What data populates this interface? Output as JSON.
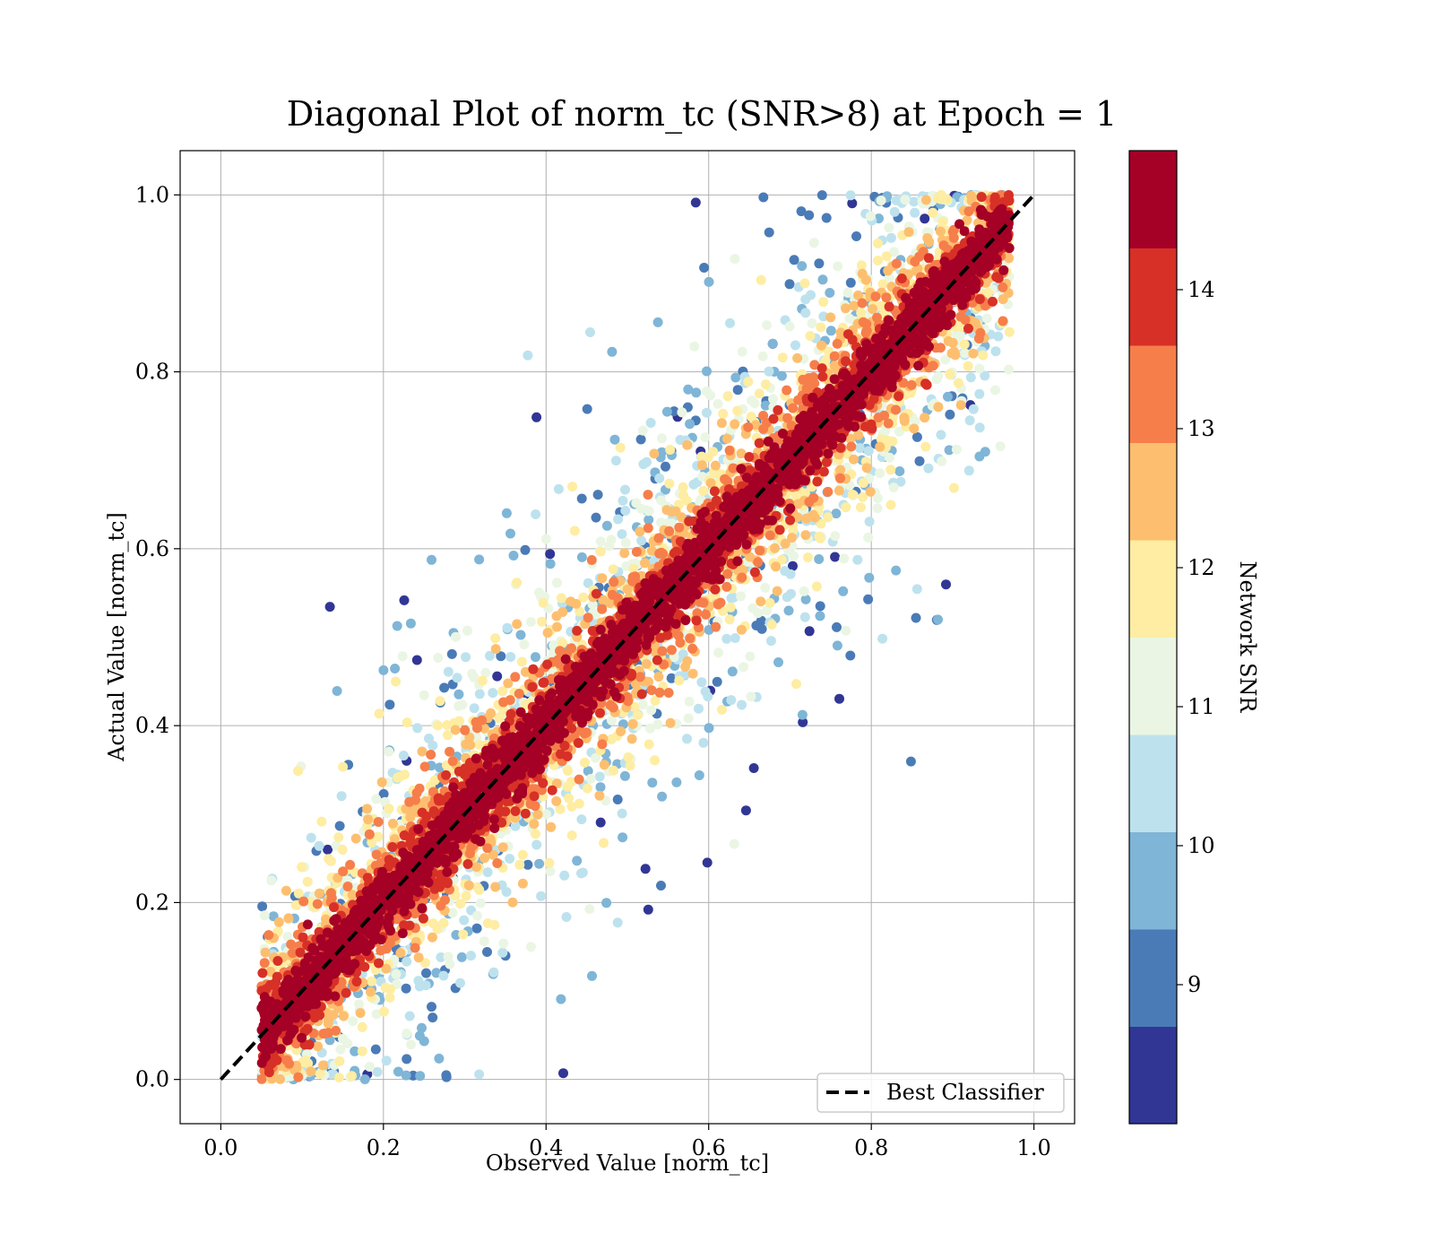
{
  "chart_data": {
    "type": "scatter",
    "title": "Diagonal Plot of norm_tc (SNR>8) at Epoch = 1",
    "xlabel": "Observed Value [norm_tc]",
    "ylabel": "Actual Value [norm_tc]",
    "xlim": [
      -0.05,
      1.05
    ],
    "ylim": [
      -0.05,
      1.05
    ],
    "xticks": [
      0.0,
      0.2,
      0.4,
      0.6,
      0.8,
      1.0
    ],
    "yticks": [
      0.0,
      0.2,
      0.4,
      0.6,
      0.8,
      1.0
    ],
    "xtick_labels": [
      "0.0",
      "0.2",
      "0.4",
      "0.6",
      "0.8",
      "1.0"
    ],
    "ytick_labels": [
      "0.0",
      "0.2",
      "0.4",
      "0.6",
      "0.8",
      "1.0"
    ],
    "grid": true,
    "reference_line": {
      "label": "Best Classifier",
      "style": "dashed",
      "color": "#000000",
      "x": [
        0.0,
        1.0
      ],
      "y": [
        0.0,
        1.0
      ]
    },
    "legend": {
      "placement": "lower right",
      "entries": [
        "Best Classifier"
      ]
    },
    "colorbar": {
      "label": "Network SNR",
      "range": [
        8,
        15
      ],
      "ticks": [
        9,
        10,
        11,
        12,
        13,
        14
      ],
      "tick_labels": [
        "9",
        "10",
        "11",
        "12",
        "13",
        "14"
      ],
      "colors": [
        "#313695",
        "#4a7bb7",
        "#7fb5d6",
        "#bde2ee",
        "#eaf6e3",
        "#feeda2",
        "#fdbf6f",
        "#f67e4b",
        "#d73027",
        "#a50026"
      ]
    },
    "scatter_summary": {
      "n_points_shown": "dense (many thousands)",
      "marker": "filled circle",
      "pattern": "points concentrated along y = x for x in about 0.05–0.95; high-SNR (dark red) points tightly on the diagonal, low-SNR (blue) points scattered farther from it; observed values limited to roughly 0.05–0.97"
    }
  }
}
